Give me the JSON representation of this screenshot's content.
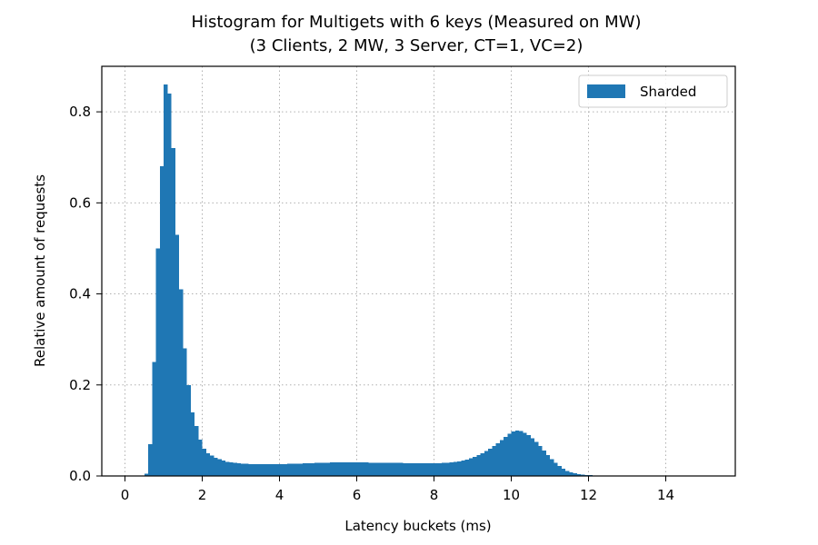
{
  "chart_data": {
    "type": "bar",
    "title_line1": "Histogram for Multigets with 6 keys (Measured on MW)",
    "title_line2": "(3 Clients, 2 MW, 3 Server, CT=1, VC=2)",
    "xlabel": "Latency buckets (ms)",
    "ylabel": "Relative amount of requests",
    "xlim": [
      -0.6,
      15.8
    ],
    "ylim": [
      0,
      0.9
    ],
    "xticks": [
      0,
      2,
      4,
      6,
      8,
      10,
      12,
      14
    ],
    "xtick_labels": [
      "0",
      "2",
      "4",
      "6",
      "8",
      "10",
      "12",
      "14"
    ],
    "yticks": [
      0.0,
      0.2,
      0.4,
      0.6,
      0.8
    ],
    "ytick_labels": [
      "0.0",
      "0.2",
      "0.4",
      "0.6",
      "0.8"
    ],
    "grid": true,
    "legend_position": "top-right",
    "bin_width": 0.1,
    "series": [
      {
        "name": "Sharded",
        "color": "#1f77b4",
        "bins_start": [
          0.5,
          0.6,
          0.7,
          0.8,
          0.9,
          1.0,
          1.1,
          1.2,
          1.3,
          1.4,
          1.5,
          1.6,
          1.7,
          1.8,
          1.9,
          2.0,
          2.1,
          2.2,
          2.3,
          2.4,
          2.5,
          2.6,
          2.7,
          2.8,
          2.9,
          3.0,
          3.1,
          3.2,
          3.3,
          3.4,
          3.5,
          3.6,
          3.7,
          3.8,
          3.9,
          4.0,
          4.1,
          4.2,
          4.3,
          4.4,
          4.5,
          4.6,
          4.7,
          4.8,
          4.9,
          5.0,
          5.1,
          5.2,
          5.3,
          5.4,
          5.5,
          5.6,
          5.7,
          5.8,
          5.9,
          6.0,
          6.1,
          6.2,
          6.3,
          6.4,
          6.5,
          6.6,
          6.7,
          6.8,
          6.9,
          7.0,
          7.1,
          7.2,
          7.3,
          7.4,
          7.5,
          7.6,
          7.7,
          7.8,
          7.9,
          8.0,
          8.1,
          8.2,
          8.3,
          8.4,
          8.5,
          8.6,
          8.7,
          8.8,
          8.9,
          9.0,
          9.1,
          9.2,
          9.3,
          9.4,
          9.5,
          9.6,
          9.7,
          9.8,
          9.9,
          10.0,
          10.1,
          10.2,
          10.3,
          10.4,
          10.5,
          10.6,
          10.7,
          10.8,
          10.9,
          11.0,
          11.1,
          11.2,
          11.3,
          11.4,
          11.5,
          11.6,
          11.7,
          11.8,
          11.9,
          12.0,
          12.1,
          12.2,
          12.3,
          12.4,
          12.5,
          12.6,
          12.7,
          12.8,
          12.9,
          13.0,
          13.1,
          13.2,
          13.3,
          13.4,
          13.5,
          13.6,
          13.7,
          13.8,
          13.9,
          14.0,
          14.1,
          14.2,
          14.3,
          14.4,
          14.5,
          14.6,
          14.7,
          14.8,
          14.9
        ],
        "values": [
          0.005,
          0.07,
          0.25,
          0.5,
          0.68,
          0.86,
          0.84,
          0.72,
          0.53,
          0.41,
          0.28,
          0.2,
          0.14,
          0.11,
          0.08,
          0.06,
          0.05,
          0.045,
          0.04,
          0.037,
          0.034,
          0.031,
          0.03,
          0.029,
          0.028,
          0.027,
          0.027,
          0.026,
          0.026,
          0.026,
          0.026,
          0.026,
          0.026,
          0.026,
          0.026,
          0.026,
          0.026,
          0.027,
          0.027,
          0.027,
          0.027,
          0.028,
          0.028,
          0.028,
          0.029,
          0.029,
          0.029,
          0.029,
          0.03,
          0.03,
          0.03,
          0.03,
          0.03,
          0.03,
          0.03,
          0.03,
          0.03,
          0.03,
          0.029,
          0.029,
          0.029,
          0.029,
          0.029,
          0.029,
          0.029,
          0.029,
          0.029,
          0.028,
          0.028,
          0.028,
          0.028,
          0.028,
          0.028,
          0.028,
          0.028,
          0.028,
          0.028,
          0.029,
          0.029,
          0.03,
          0.031,
          0.032,
          0.034,
          0.036,
          0.039,
          0.042,
          0.046,
          0.05,
          0.055,
          0.06,
          0.066,
          0.072,
          0.079,
          0.086,
          0.093,
          0.098,
          0.1,
          0.099,
          0.095,
          0.09,
          0.083,
          0.075,
          0.066,
          0.056,
          0.046,
          0.037,
          0.029,
          0.022,
          0.016,
          0.011,
          0.008,
          0.006,
          0.004,
          0.003,
          0.002,
          0.002,
          0.001,
          0.001,
          0.001,
          0.001,
          0.001,
          0.001,
          0.0005,
          0.0005,
          0.0005,
          0.0005,
          0.0003,
          0.0003,
          0.0003,
          0.0003,
          0.0002,
          0.0002,
          0.0002,
          0.0002,
          0.0001,
          0.0001,
          0.0001,
          0.0001,
          0.0001,
          0.0001,
          0.0001,
          0.0001,
          0.0001,
          0.0001,
          0.0001
        ]
      }
    ]
  }
}
